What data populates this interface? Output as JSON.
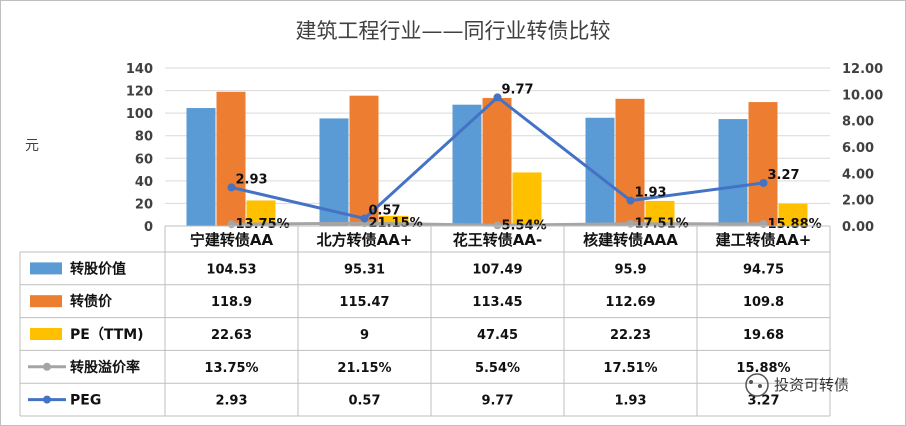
{
  "chart_data": {
    "type": "bar",
    "title": "建筑工程行业——同行业转债比较",
    "ylabel": "元",
    "ylim": [
      0,
      140
    ],
    "y_ticks": [
      "0",
      "20",
      "40",
      "60",
      "80",
      "100",
      "120",
      "140"
    ],
    "y2lim": [
      0,
      12
    ],
    "y2_ticks": [
      "0.00",
      "2.00",
      "4.00",
      "6.00",
      "8.00",
      "10.00",
      "12.00"
    ],
    "categories": [
      "宁建转债AA",
      "北方转债AA+",
      "花王转债AA-",
      "核建转债AAA",
      "建工转债AA+"
    ],
    "series": [
      {
        "name": "转股价值",
        "kind": "bar",
        "axis": "left",
        "color": "#5B9BD5",
        "values": [
          104.53,
          95.31,
          107.49,
          95.9,
          94.75
        ],
        "display": [
          "104.53",
          "95.31",
          "107.49",
          "95.9",
          "94.75"
        ]
      },
      {
        "name": "转债价",
        "kind": "bar",
        "axis": "left",
        "color": "#ED7D31",
        "values": [
          118.9,
          115.47,
          113.45,
          112.69,
          109.8
        ],
        "display": [
          "118.9",
          "115.47",
          "113.45",
          "112.69",
          "109.8"
        ]
      },
      {
        "name": "PE（TTM)",
        "kind": "bar",
        "axis": "left",
        "color": "#FFC000",
        "values": [
          22.63,
          9,
          47.45,
          22.23,
          19.68
        ],
        "display": [
          "22.63",
          "9",
          "47.45",
          "22.23",
          "19.68"
        ]
      },
      {
        "name": "转股溢价率",
        "kind": "line",
        "axis": "right",
        "color": "#A5A5A5",
        "values": [
          0.1375,
          0.2115,
          0.0554,
          0.1751,
          0.1588
        ],
        "display": [
          "13.75%",
          "21.15%",
          "5.54%",
          "17.51%",
          "15.88%"
        ]
      },
      {
        "name": "PEG",
        "kind": "line",
        "axis": "right",
        "color": "#4472C4",
        "values": [
          2.93,
          0.57,
          9.77,
          1.93,
          3.27
        ],
        "display": [
          "2.93",
          "0.57",
          "9.77",
          "1.93",
          "3.27"
        ]
      }
    ],
    "grid": true,
    "legend": "table"
  },
  "watermark": "投资可转债",
  "colors": {
    "grid": "#D9D9D9",
    "border": "#BFBFBF"
  }
}
